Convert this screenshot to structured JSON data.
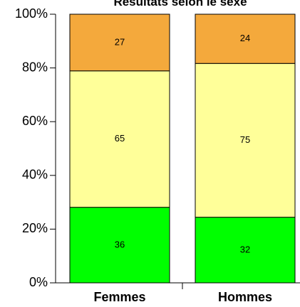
{
  "chart_data": {
    "type": "bar",
    "stacked": true,
    "normalized": true,
    "title": "Résultats selon le sexe",
    "xlabel": "",
    "ylabel": "",
    "categories": [
      "Femmes",
      "Hommes"
    ],
    "ylim": [
      0,
      100
    ],
    "yticks": [
      "0%",
      "20%",
      "40%",
      "60%",
      "80%",
      "100%"
    ],
    "series": [
      {
        "values": [
          36,
          32
        ],
        "color": "#00ff00"
      },
      {
        "values": [
          65,
          75
        ],
        "color": "#ffff99"
      },
      {
        "values": [
          27,
          24
        ],
        "color": "#f4a93c"
      }
    ],
    "grid": false,
    "legend": "none"
  }
}
